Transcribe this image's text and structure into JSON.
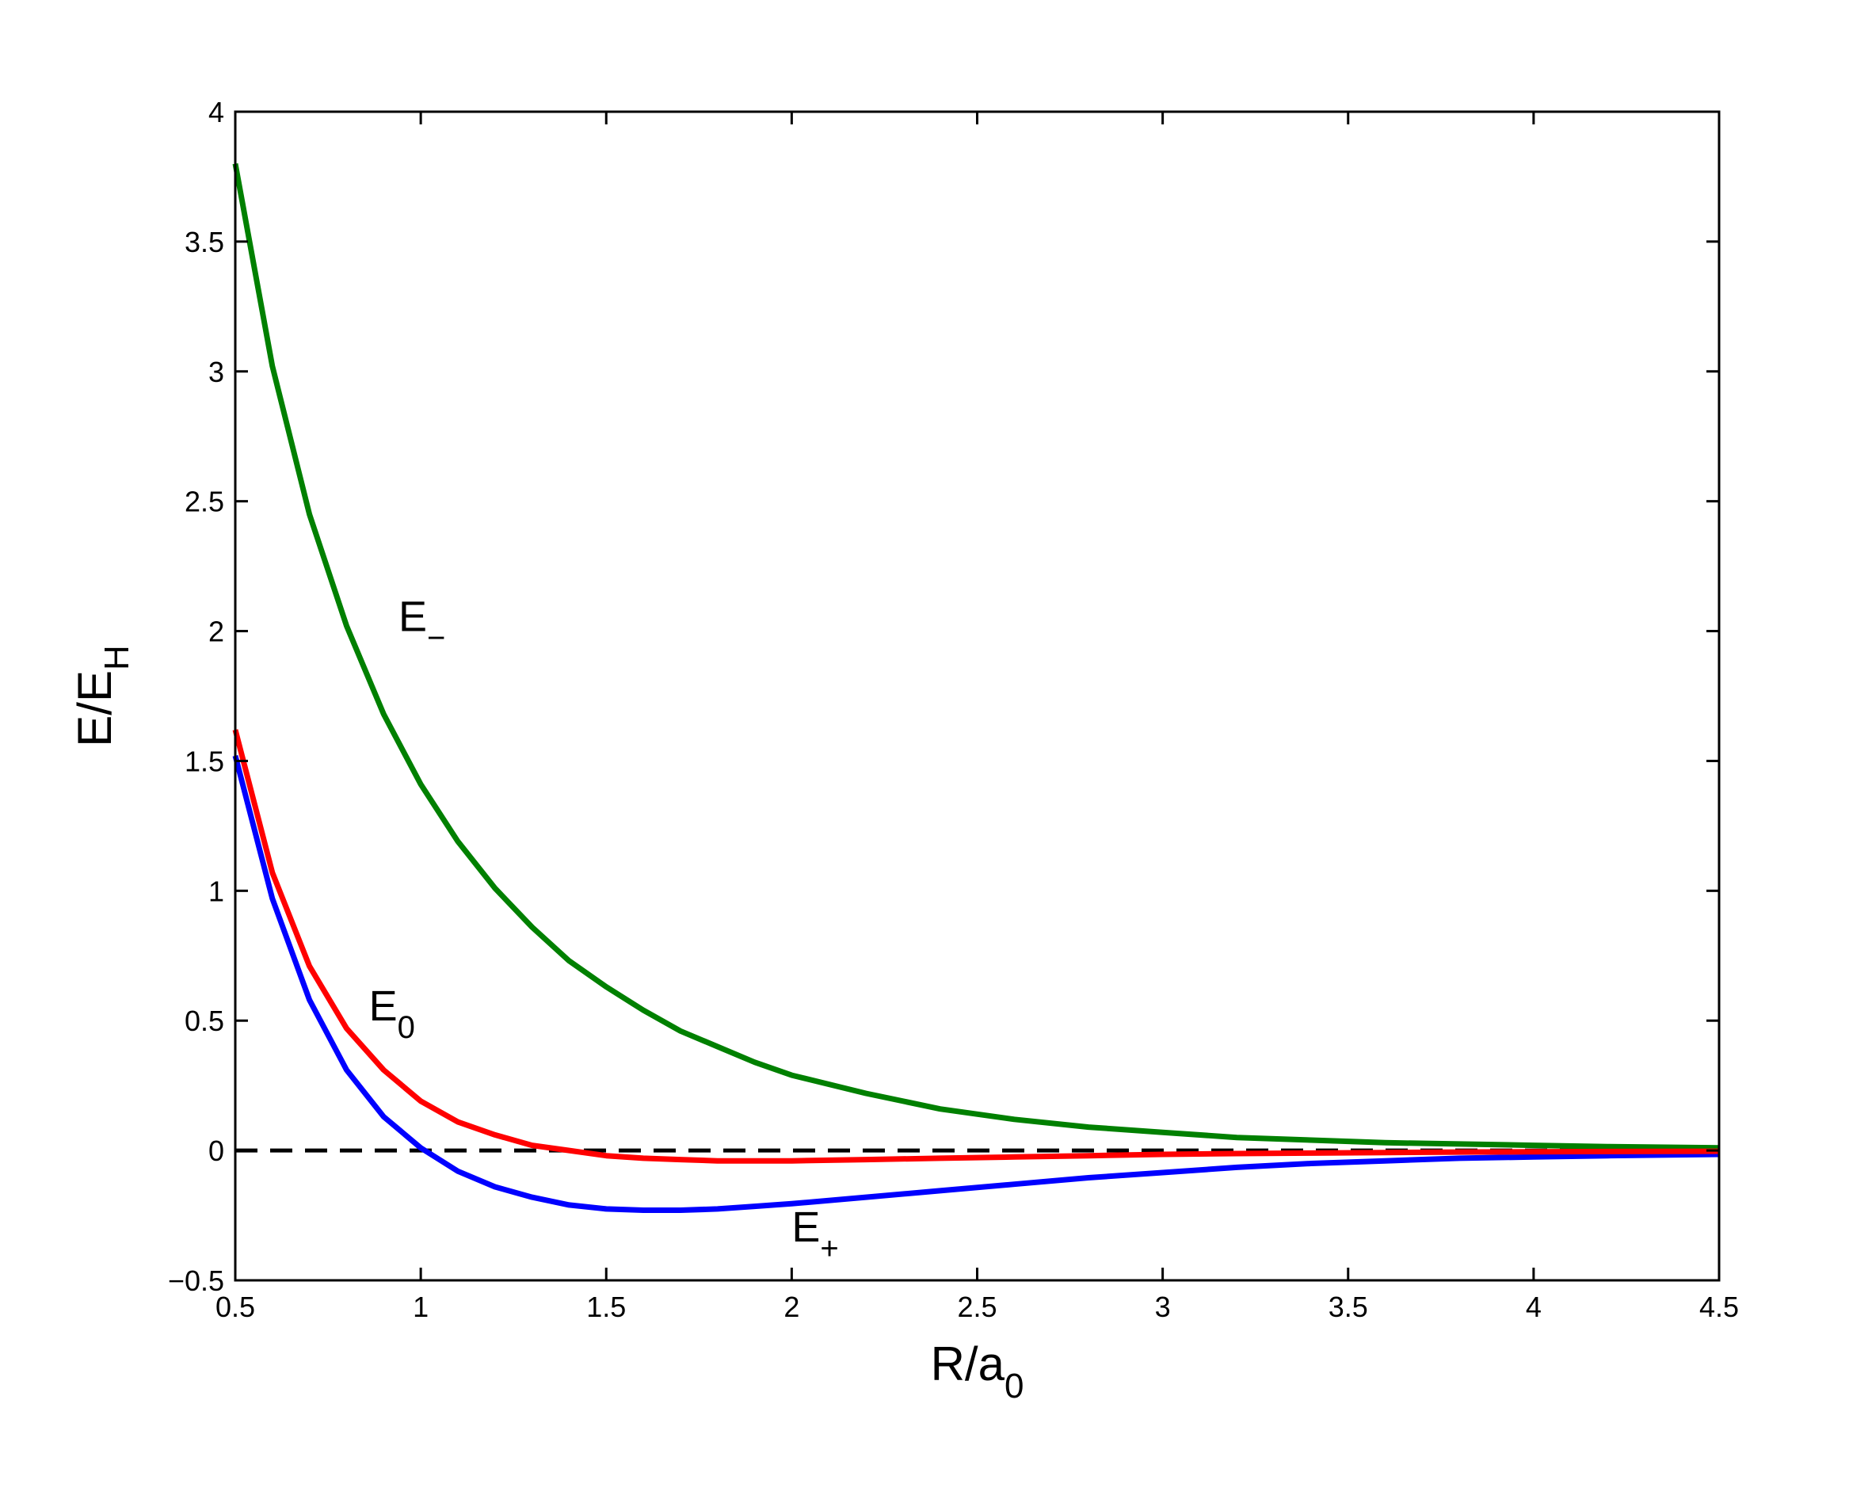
{
  "chart_data": {
    "type": "line",
    "title": "",
    "xlabel": {
      "main": "R/a",
      "sub": "0"
    },
    "ylabel": {
      "main": "E/E",
      "sub": "H"
    },
    "xlim": [
      0.5,
      4.5
    ],
    "ylim": [
      -0.5,
      4
    ],
    "xticks": [
      0.5,
      1,
      1.5,
      2,
      2.5,
      3,
      3.5,
      4,
      4.5
    ],
    "xtick_labels": [
      "0.5",
      "1",
      "1.5",
      "2",
      "2.5",
      "3",
      "3.5",
      "4",
      "4.5"
    ],
    "yticks": [
      -0.5,
      0,
      0.5,
      1,
      1.5,
      2,
      2.5,
      3,
      3.5,
      4
    ],
    "ytick_labels": [
      "−0.5",
      "0",
      "0.5",
      "1",
      "1.5",
      "2",
      "2.5",
      "3",
      "3.5",
      "4"
    ],
    "grid": false,
    "x": [
      0.5,
      0.6,
      0.7,
      0.8,
      0.9,
      1.0,
      1.1,
      1.2,
      1.3,
      1.4,
      1.5,
      1.6,
      1.7,
      1.8,
      1.9,
      2.0,
      2.2,
      2.4,
      2.6,
      2.8,
      3.0,
      3.2,
      3.4,
      3.6,
      3.8,
      4.0,
      4.2,
      4.5
    ],
    "series": [
      {
        "key": "E_minus",
        "color": "#008000",
        "values": [
          3.8,
          3.02,
          2.45,
          2.02,
          1.68,
          1.41,
          1.19,
          1.01,
          0.86,
          0.73,
          0.63,
          0.54,
          0.46,
          0.4,
          0.34,
          0.29,
          0.22,
          0.16,
          0.12,
          0.09,
          0.07,
          0.05,
          0.04,
          0.03,
          0.025,
          0.02,
          0.015,
          0.01
        ]
      },
      {
        "key": "E_0",
        "color": "#ff0000",
        "values": [
          1.62,
          1.07,
          0.71,
          0.47,
          0.31,
          0.19,
          0.11,
          0.06,
          0.02,
          0.0,
          -0.02,
          -0.03,
          -0.035,
          -0.04,
          -0.04,
          -0.04,
          -0.035,
          -0.03,
          -0.025,
          -0.02,
          -0.015,
          -0.012,
          -0.01,
          -0.008,
          -0.006,
          -0.005,
          -0.004,
          -0.003
        ]
      },
      {
        "key": "E_plus",
        "color": "#0000ff",
        "values": [
          1.52,
          0.97,
          0.58,
          0.31,
          0.13,
          0.01,
          -0.08,
          -0.14,
          -0.18,
          -0.21,
          -0.225,
          -0.23,
          -0.23,
          -0.225,
          -0.215,
          -0.205,
          -0.18,
          -0.155,
          -0.13,
          -0.105,
          -0.085,
          -0.065,
          -0.05,
          -0.04,
          -0.03,
          -0.025,
          -0.02,
          -0.015
        ]
      },
      {
        "key": "zero_line",
        "color": "#000000",
        "dashed": true,
        "values": [
          0,
          0,
          0,
          0,
          0,
          0,
          0,
          0,
          0,
          0,
          0,
          0,
          0,
          0,
          0,
          0,
          0,
          0,
          0,
          0,
          0,
          0,
          0,
          0,
          0,
          0,
          0,
          0
        ]
      }
    ],
    "annotations": [
      {
        "key": "E_minus",
        "main": "E",
        "sub": "−",
        "x": 0.94,
        "y": 2.0
      },
      {
        "key": "E_0",
        "main": "E",
        "sub": "0",
        "x": 0.86,
        "y": 0.5
      },
      {
        "key": "E_plus",
        "main": "E",
        "sub": "+",
        "x": 2.0,
        "y": -0.35
      }
    ]
  }
}
